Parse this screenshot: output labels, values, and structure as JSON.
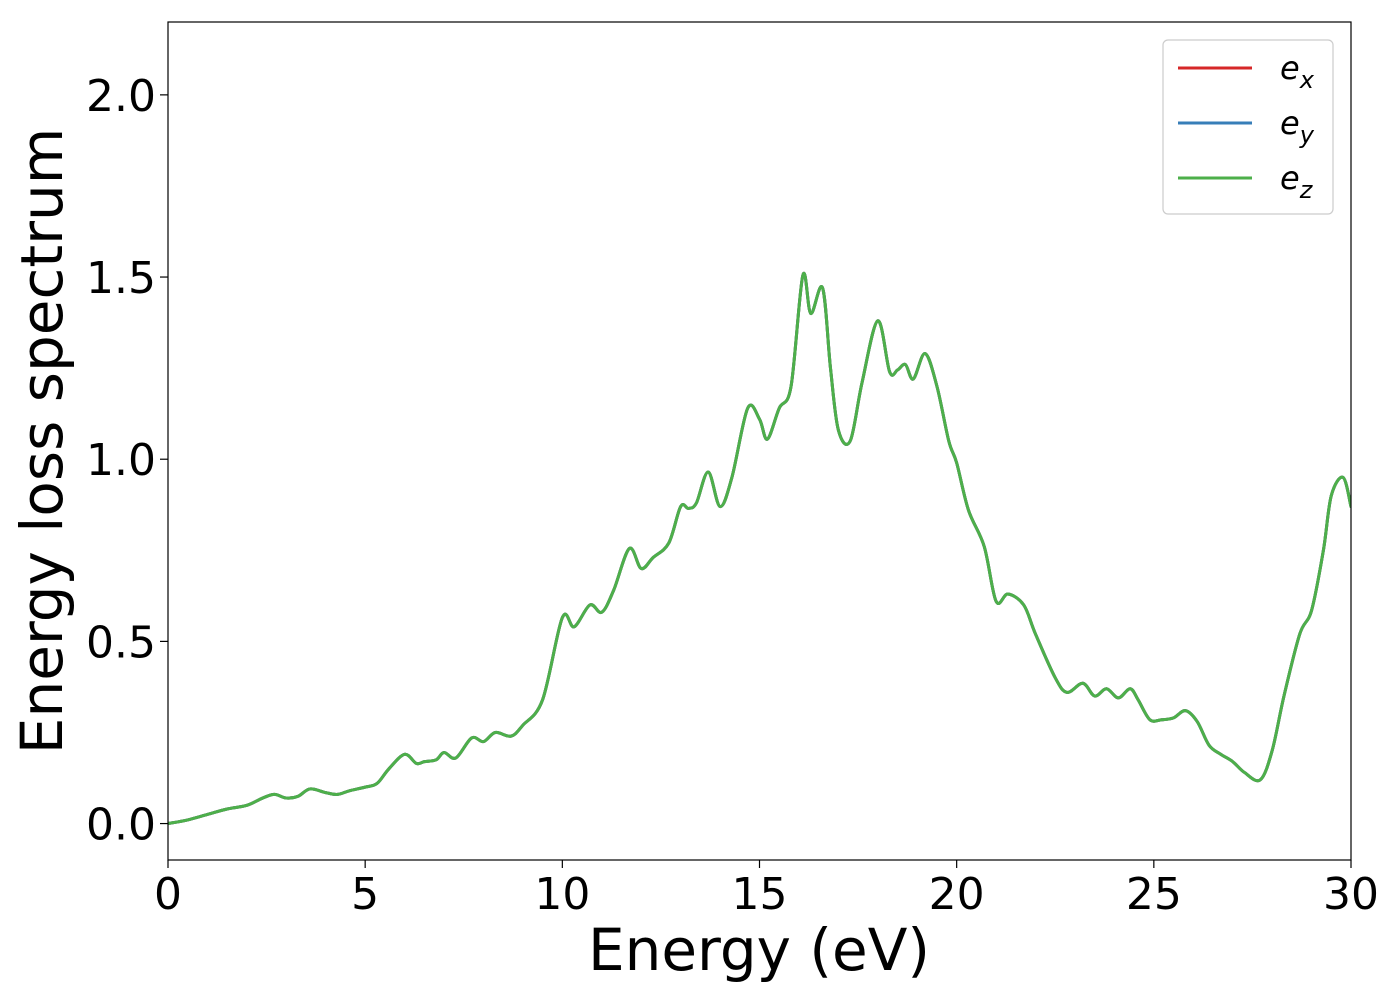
{
  "chart_data": {
    "type": "line",
    "title": "",
    "xlabel": "Energy (eV)",
    "ylabel": "Energy loss spectrum",
    "xlim": [
      0,
      30
    ],
    "ylim": [
      -0.1,
      2.2
    ],
    "xticks": [
      0,
      5,
      10,
      15,
      20,
      25,
      30
    ],
    "xtick_labels": [
      "0",
      "5",
      "10",
      "15",
      "20",
      "25",
      "30"
    ],
    "yticks": [
      0.0,
      0.5,
      1.0,
      1.5,
      2.0
    ],
    "ytick_labels": [
      "0.0",
      "0.5",
      "1.0",
      "1.5",
      "2.0"
    ],
    "grid": false,
    "legend_position": "top-right",
    "x": [
      0,
      0.5,
      1.0,
      1.5,
      2.0,
      2.4,
      2.7,
      3.0,
      3.3,
      3.6,
      4.0,
      4.3,
      4.6,
      5.0,
      5.3,
      5.6,
      6.0,
      6.3,
      6.5,
      6.8,
      7.0,
      7.3,
      7.7,
      8.0,
      8.3,
      8.7,
      9.0,
      9.5,
      10.0,
      10.3,
      10.7,
      11.0,
      11.3,
      11.7,
      12.0,
      12.3,
      12.7,
      13.0,
      13.2,
      13.4,
      13.7,
      14.0,
      14.3,
      14.7,
      15.0,
      15.2,
      15.5,
      15.8,
      16.1,
      16.3,
      16.6,
      16.8,
      17.0,
      17.3,
      17.6,
      18.0,
      18.3,
      18.5,
      18.7,
      18.9,
      19.2,
      19.5,
      19.8,
      20.0,
      20.3,
      20.7,
      21.0,
      21.3,
      21.7,
      22.0,
      22.5,
      22.8,
      23.2,
      23.5,
      23.8,
      24.1,
      24.4,
      24.6,
      24.9,
      25.2,
      25.5,
      25.8,
      26.1,
      26.4,
      26.7,
      27.0,
      27.3,
      27.7,
      28.0,
      28.3,
      28.7,
      29.0,
      29.3,
      29.5,
      29.8,
      30.0
    ],
    "series": [
      {
        "name": "e_x",
        "color": "#d62728",
        "y": [
          0.0,
          0.01,
          0.025,
          0.04,
          0.05,
          0.07,
          0.08,
          0.07,
          0.075,
          0.095,
          0.085,
          0.08,
          0.09,
          0.1,
          0.11,
          0.15,
          0.19,
          0.165,
          0.17,
          0.175,
          0.195,
          0.18,
          0.235,
          0.225,
          0.25,
          0.24,
          0.27,
          0.34,
          0.565,
          0.54,
          0.6,
          0.58,
          0.64,
          0.755,
          0.7,
          0.73,
          0.77,
          0.87,
          0.865,
          0.88,
          0.965,
          0.87,
          0.95,
          1.14,
          1.11,
          1.055,
          1.14,
          1.2,
          1.505,
          1.4,
          1.47,
          1.25,
          1.08,
          1.05,
          1.21,
          1.38,
          1.24,
          1.245,
          1.26,
          1.22,
          1.29,
          1.2,
          1.05,
          0.99,
          0.86,
          0.76,
          0.61,
          0.63,
          0.6,
          0.52,
          0.4,
          0.36,
          0.385,
          0.35,
          0.37,
          0.345,
          0.37,
          0.34,
          0.285,
          0.285,
          0.29,
          0.31,
          0.28,
          0.215,
          0.19,
          0.17,
          0.14,
          0.12,
          0.2,
          0.35,
          0.52,
          0.585,
          0.75,
          0.9,
          0.95,
          0.87
        ]
      },
      {
        "name": "e_y",
        "color": "#377eb8",
        "y": [
          0.0,
          0.01,
          0.025,
          0.04,
          0.05,
          0.07,
          0.08,
          0.07,
          0.075,
          0.095,
          0.085,
          0.08,
          0.09,
          0.1,
          0.11,
          0.15,
          0.19,
          0.165,
          0.17,
          0.175,
          0.195,
          0.18,
          0.235,
          0.225,
          0.25,
          0.24,
          0.27,
          0.34,
          0.565,
          0.54,
          0.6,
          0.58,
          0.64,
          0.755,
          0.7,
          0.73,
          0.77,
          0.87,
          0.865,
          0.88,
          0.965,
          0.87,
          0.95,
          1.14,
          1.11,
          1.055,
          1.14,
          1.2,
          1.505,
          1.4,
          1.47,
          1.25,
          1.08,
          1.05,
          1.21,
          1.38,
          1.24,
          1.245,
          1.26,
          1.22,
          1.29,
          1.2,
          1.05,
          0.99,
          0.86,
          0.76,
          0.61,
          0.63,
          0.6,
          0.52,
          0.4,
          0.36,
          0.385,
          0.35,
          0.37,
          0.345,
          0.37,
          0.34,
          0.285,
          0.285,
          0.29,
          0.31,
          0.28,
          0.215,
          0.19,
          0.17,
          0.14,
          0.12,
          0.2,
          0.35,
          0.52,
          0.585,
          0.75,
          0.9,
          0.95,
          0.87
        ]
      },
      {
        "name": "e_z",
        "color": "#4daf4a",
        "y": [
          0.0,
          0.01,
          0.025,
          0.04,
          0.05,
          0.07,
          0.08,
          0.07,
          0.075,
          0.095,
          0.085,
          0.08,
          0.09,
          0.1,
          0.11,
          0.15,
          0.19,
          0.165,
          0.17,
          0.175,
          0.195,
          0.18,
          0.235,
          0.225,
          0.25,
          0.24,
          0.27,
          0.34,
          0.565,
          0.54,
          0.6,
          0.58,
          0.64,
          0.755,
          0.7,
          0.73,
          0.77,
          0.87,
          0.865,
          0.88,
          0.965,
          0.87,
          0.95,
          1.14,
          1.11,
          1.055,
          1.14,
          1.2,
          1.505,
          1.4,
          1.47,
          1.25,
          1.08,
          1.05,
          1.21,
          1.38,
          1.24,
          1.245,
          1.26,
          1.22,
          1.29,
          1.2,
          1.05,
          0.99,
          0.86,
          0.76,
          0.61,
          0.63,
          0.6,
          0.52,
          0.4,
          0.36,
          0.385,
          0.35,
          0.37,
          0.345,
          0.37,
          0.34,
          0.285,
          0.285,
          0.29,
          0.31,
          0.28,
          0.215,
          0.19,
          0.17,
          0.14,
          0.12,
          0.2,
          0.35,
          0.52,
          0.585,
          0.75,
          0.9,
          0.95,
          0.87
        ]
      }
    ],
    "legend": [
      {
        "base": "e",
        "sub": "x",
        "color": "#d62728"
      },
      {
        "base": "e",
        "sub": "y",
        "color": "#377eb8"
      },
      {
        "base": "e",
        "sub": "z",
        "color": "#4daf4a"
      }
    ]
  }
}
